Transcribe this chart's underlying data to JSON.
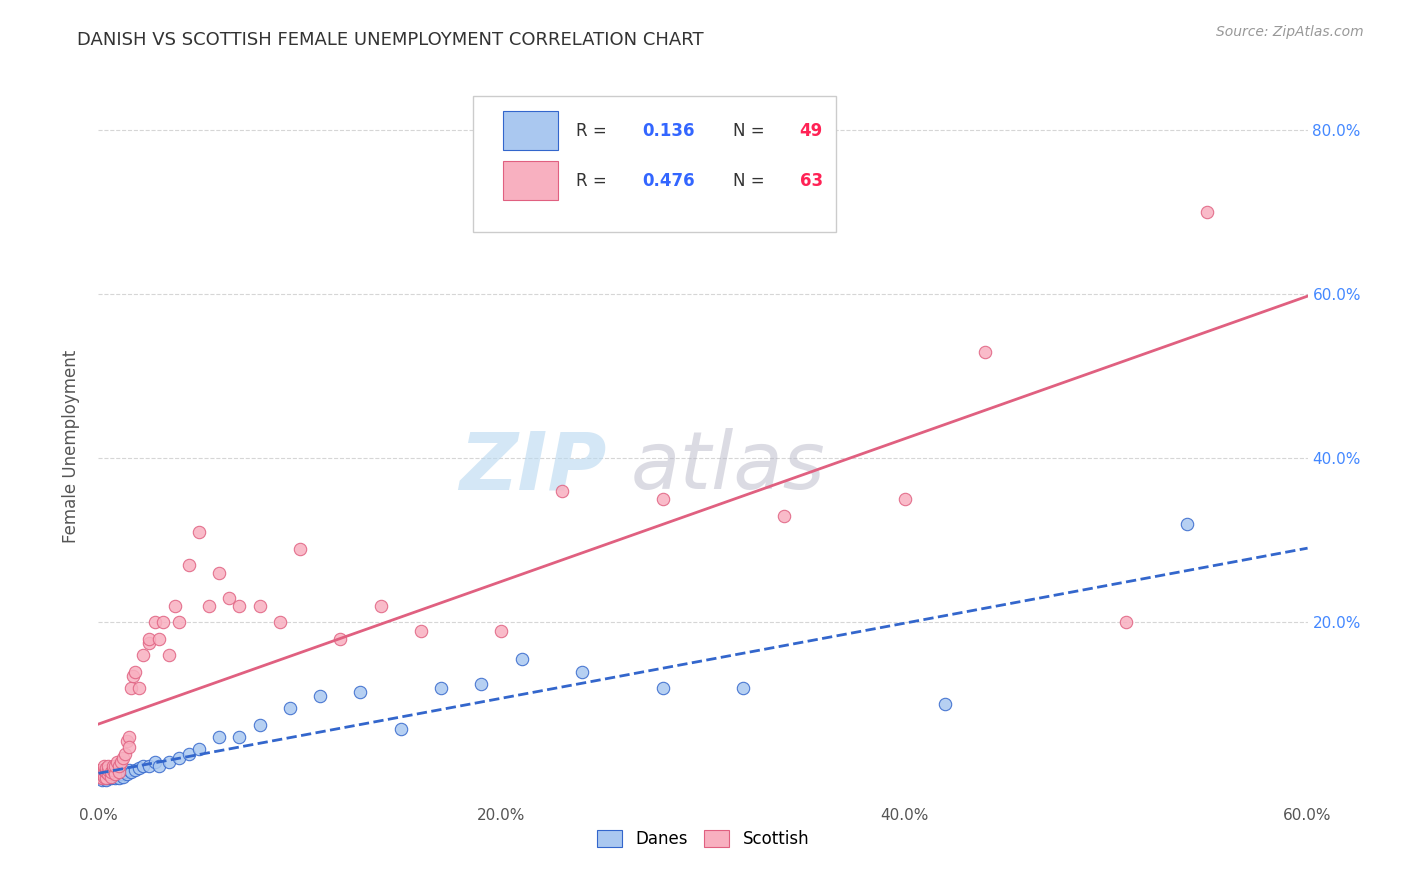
{
  "title": "DANISH VS SCOTTISH FEMALE UNEMPLOYMENT CORRELATION CHART",
  "source": "Source: ZipAtlas.com",
  "ylabel": "Female Unemployment",
  "xlim": [
    0.0,
    0.6
  ],
  "ylim": [
    -0.02,
    0.85
  ],
  "xtick_labels": [
    "0.0%",
    "20.0%",
    "40.0%",
    "60.0%"
  ],
  "xtick_vals": [
    0.0,
    0.2,
    0.4,
    0.6
  ],
  "ytick_labels": [
    "20.0%",
    "40.0%",
    "60.0%",
    "80.0%"
  ],
  "ytick_vals": [
    0.2,
    0.4,
    0.6,
    0.8
  ],
  "danes_color": "#aac8f0",
  "danish_line_color": "#3366cc",
  "scottish_color": "#f8b0c0",
  "scottish_line_color": "#e06080",
  "danes_R": 0.136,
  "danes_N": 49,
  "scottish_R": 0.476,
  "scottish_N": 63,
  "background_color": "#ffffff",
  "grid_color": "#cccccc",
  "title_color": "#333333",
  "axis_label_color": "#555555",
  "right_tick_color": "#4488ff",
  "legend_R_color": "#3366ff",
  "legend_N_color": "#ff2255",
  "danes_x": [
    0.001,
    0.001,
    0.002,
    0.002,
    0.003,
    0.003,
    0.004,
    0.004,
    0.005,
    0.005,
    0.006,
    0.006,
    0.007,
    0.007,
    0.008,
    0.009,
    0.01,
    0.01,
    0.011,
    0.012,
    0.013,
    0.014,
    0.015,
    0.016,
    0.018,
    0.02,
    0.022,
    0.025,
    0.028,
    0.03,
    0.035,
    0.04,
    0.045,
    0.05,
    0.06,
    0.07,
    0.08,
    0.095,
    0.11,
    0.13,
    0.15,
    0.17,
    0.19,
    0.21,
    0.24,
    0.28,
    0.32,
    0.42,
    0.54
  ],
  "danes_y": [
    0.01,
    0.015,
    0.008,
    0.012,
    0.01,
    0.018,
    0.008,
    0.015,
    0.012,
    0.01,
    0.015,
    0.01,
    0.012,
    0.018,
    0.01,
    0.015,
    0.01,
    0.02,
    0.015,
    0.012,
    0.018,
    0.015,
    0.02,
    0.018,
    0.02,
    0.022,
    0.025,
    0.025,
    0.03,
    0.025,
    0.03,
    0.035,
    0.04,
    0.045,
    0.06,
    0.06,
    0.075,
    0.095,
    0.11,
    0.115,
    0.07,
    0.12,
    0.125,
    0.155,
    0.14,
    0.12,
    0.12,
    0.1,
    0.32
  ],
  "scottish_x": [
    0.001,
    0.001,
    0.001,
    0.002,
    0.002,
    0.002,
    0.003,
    0.003,
    0.003,
    0.004,
    0.004,
    0.004,
    0.005,
    0.005,
    0.005,
    0.006,
    0.006,
    0.007,
    0.007,
    0.008,
    0.008,
    0.009,
    0.01,
    0.01,
    0.011,
    0.012,
    0.013,
    0.014,
    0.015,
    0.015,
    0.016,
    0.017,
    0.018,
    0.02,
    0.022,
    0.025,
    0.025,
    0.028,
    0.03,
    0.032,
    0.035,
    0.038,
    0.04,
    0.045,
    0.05,
    0.055,
    0.06,
    0.065,
    0.07,
    0.08,
    0.09,
    0.1,
    0.12,
    0.14,
    0.16,
    0.2,
    0.23,
    0.28,
    0.34,
    0.4,
    0.44,
    0.51,
    0.55
  ],
  "scottish_y": [
    0.012,
    0.015,
    0.02,
    0.01,
    0.015,
    0.018,
    0.012,
    0.02,
    0.025,
    0.01,
    0.018,
    0.022,
    0.015,
    0.02,
    0.025,
    0.012,
    0.018,
    0.02,
    0.025,
    0.015,
    0.025,
    0.03,
    0.018,
    0.025,
    0.03,
    0.035,
    0.04,
    0.055,
    0.06,
    0.048,
    0.12,
    0.135,
    0.14,
    0.12,
    0.16,
    0.175,
    0.18,
    0.2,
    0.18,
    0.2,
    0.16,
    0.22,
    0.2,
    0.27,
    0.31,
    0.22,
    0.26,
    0.23,
    0.22,
    0.22,
    0.2,
    0.29,
    0.18,
    0.22,
    0.19,
    0.19,
    0.36,
    0.35,
    0.33,
    0.35,
    0.53,
    0.2,
    0.7
  ]
}
